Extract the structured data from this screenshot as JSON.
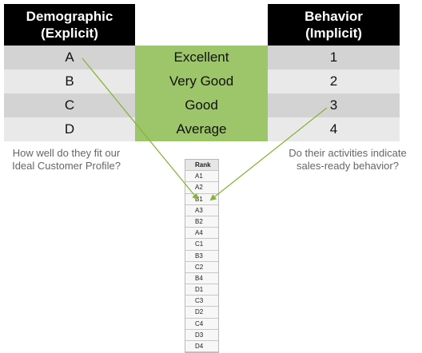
{
  "headers": {
    "demographic_line1": "Demographic",
    "demographic_line2": "(Explicit)",
    "behavior_line1": "Behavior",
    "behavior_line2": "(Implicit)"
  },
  "rows": [
    {
      "demographic": "A",
      "rating": "Excellent",
      "behavior": "1"
    },
    {
      "demographic": "B",
      "rating": "Very Good",
      "behavior": "2"
    },
    {
      "demographic": "C",
      "rating": "Good",
      "behavior": "3"
    },
    {
      "demographic": "D",
      "rating": "Average",
      "behavior": "4"
    }
  ],
  "captions": {
    "left_line1": "How well do they fit our",
    "left_line2": "Ideal Customer Profile?",
    "right_line1": "Do their activities indicate",
    "right_line2": "sales-ready behavior?"
  },
  "rank_table": {
    "header": "Rank",
    "items": [
      "A1",
      "A2",
      "B1",
      "A3",
      "B2",
      "A4",
      "C1",
      "B3",
      "C2",
      "B4",
      "D1",
      "C3",
      "D2",
      "C4",
      "D3",
      "D4"
    ]
  },
  "colors": {
    "header_bg": "#000000",
    "green": "#9dc56a",
    "arrow": "#86b43a"
  }
}
